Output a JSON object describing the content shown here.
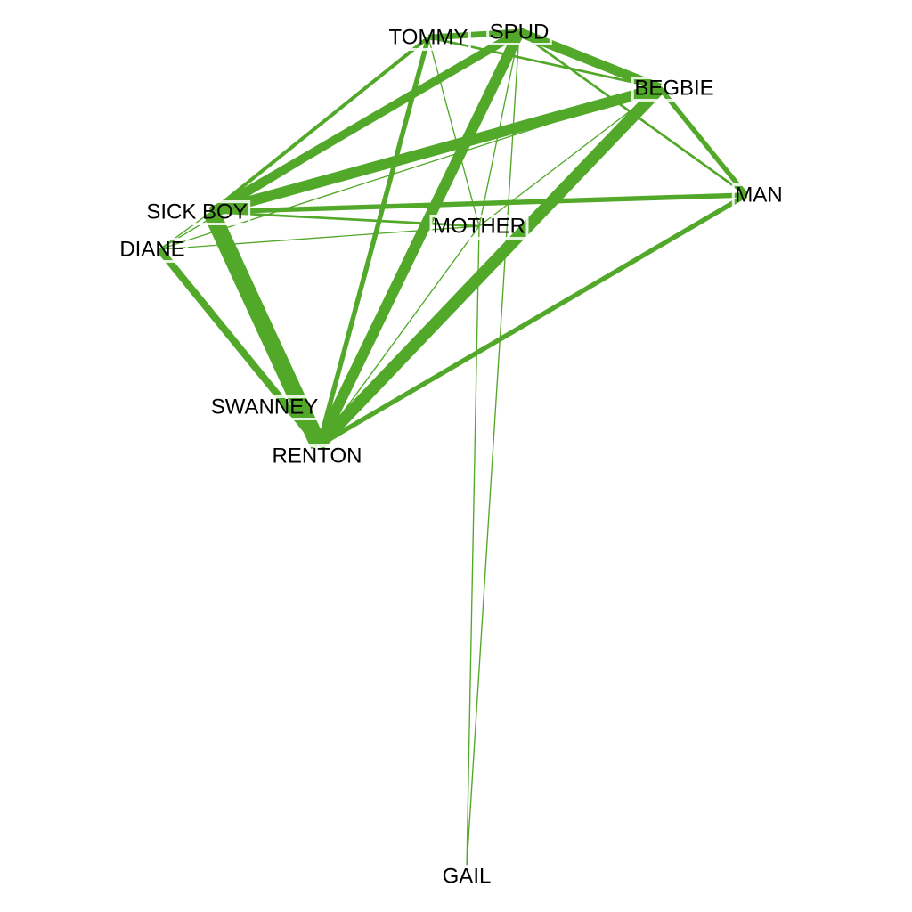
{
  "diagram": {
    "type": "network-graph",
    "edge_color": "#52a829",
    "background": "#ffffff",
    "nodes": [
      {
        "id": "TOMMY",
        "label": "TOMMY"
      },
      {
        "id": "SPUD",
        "label": "SPUD"
      },
      {
        "id": "BEGBIE",
        "label": "BEGBIE"
      },
      {
        "id": "MAN",
        "label": "MAN"
      },
      {
        "id": "SICK BOY",
        "label": "SICK BOY"
      },
      {
        "id": "DIANE",
        "label": "DIANE"
      },
      {
        "id": "MOTHER",
        "label": "MOTHER"
      },
      {
        "id": "SWANNEY",
        "label": "SWANNEY"
      },
      {
        "id": "RENTON",
        "label": "RENTON"
      },
      {
        "id": "GAIL",
        "label": "GAIL"
      }
    ],
    "edges": [
      {
        "source": "SICK BOY",
        "target": "RENTON",
        "weight": 14
      },
      {
        "source": "RENTON",
        "target": "BEGBIE",
        "weight": 10
      },
      {
        "source": "RENTON",
        "target": "SPUD",
        "weight": 9
      },
      {
        "source": "SICK BOY",
        "target": "BEGBIE",
        "weight": 9
      },
      {
        "source": "SPUD",
        "target": "BEGBIE",
        "weight": 8
      },
      {
        "source": "SICK BOY",
        "target": "SPUD",
        "weight": 7
      },
      {
        "source": "DIANE",
        "target": "RENTON",
        "weight": 6
      },
      {
        "source": "TOMMY",
        "target": "SPUD",
        "weight": 5
      },
      {
        "source": "TOMMY",
        "target": "RENTON",
        "weight": 4
      },
      {
        "source": "RENTON",
        "target": "MAN",
        "weight": 4
      },
      {
        "source": "SICK BOY",
        "target": "MAN",
        "weight": 4
      },
      {
        "source": "BEGBIE",
        "target": "MAN",
        "weight": 4
      },
      {
        "source": "TOMMY",
        "target": "SICK BOY",
        "weight": 3
      },
      {
        "source": "SPUD",
        "target": "MAN",
        "weight": 2
      },
      {
        "source": "TOMMY",
        "target": "BEGBIE",
        "weight": 2
      },
      {
        "source": "SICK BOY",
        "target": "MOTHER",
        "weight": 2
      },
      {
        "source": "RENTON",
        "target": "MOTHER",
        "weight": 1
      },
      {
        "source": "SPUD",
        "target": "MOTHER",
        "weight": 1
      },
      {
        "source": "BEGBIE",
        "target": "MOTHER",
        "weight": 1
      },
      {
        "source": "TOMMY",
        "target": "MOTHER",
        "weight": 1
      },
      {
        "source": "DIANE",
        "target": "MOTHER",
        "weight": 1
      },
      {
        "source": "DIANE",
        "target": "BEGBIE",
        "weight": 1
      },
      {
        "source": "SICK BOY",
        "target": "DIANE",
        "weight": 1
      },
      {
        "source": "SPUD",
        "target": "GAIL",
        "weight": 1
      },
      {
        "source": "MOTHER",
        "target": "GAIL",
        "weight": 1
      },
      {
        "source": "SPUD",
        "target": "DIANE",
        "weight": 1
      }
    ]
  }
}
